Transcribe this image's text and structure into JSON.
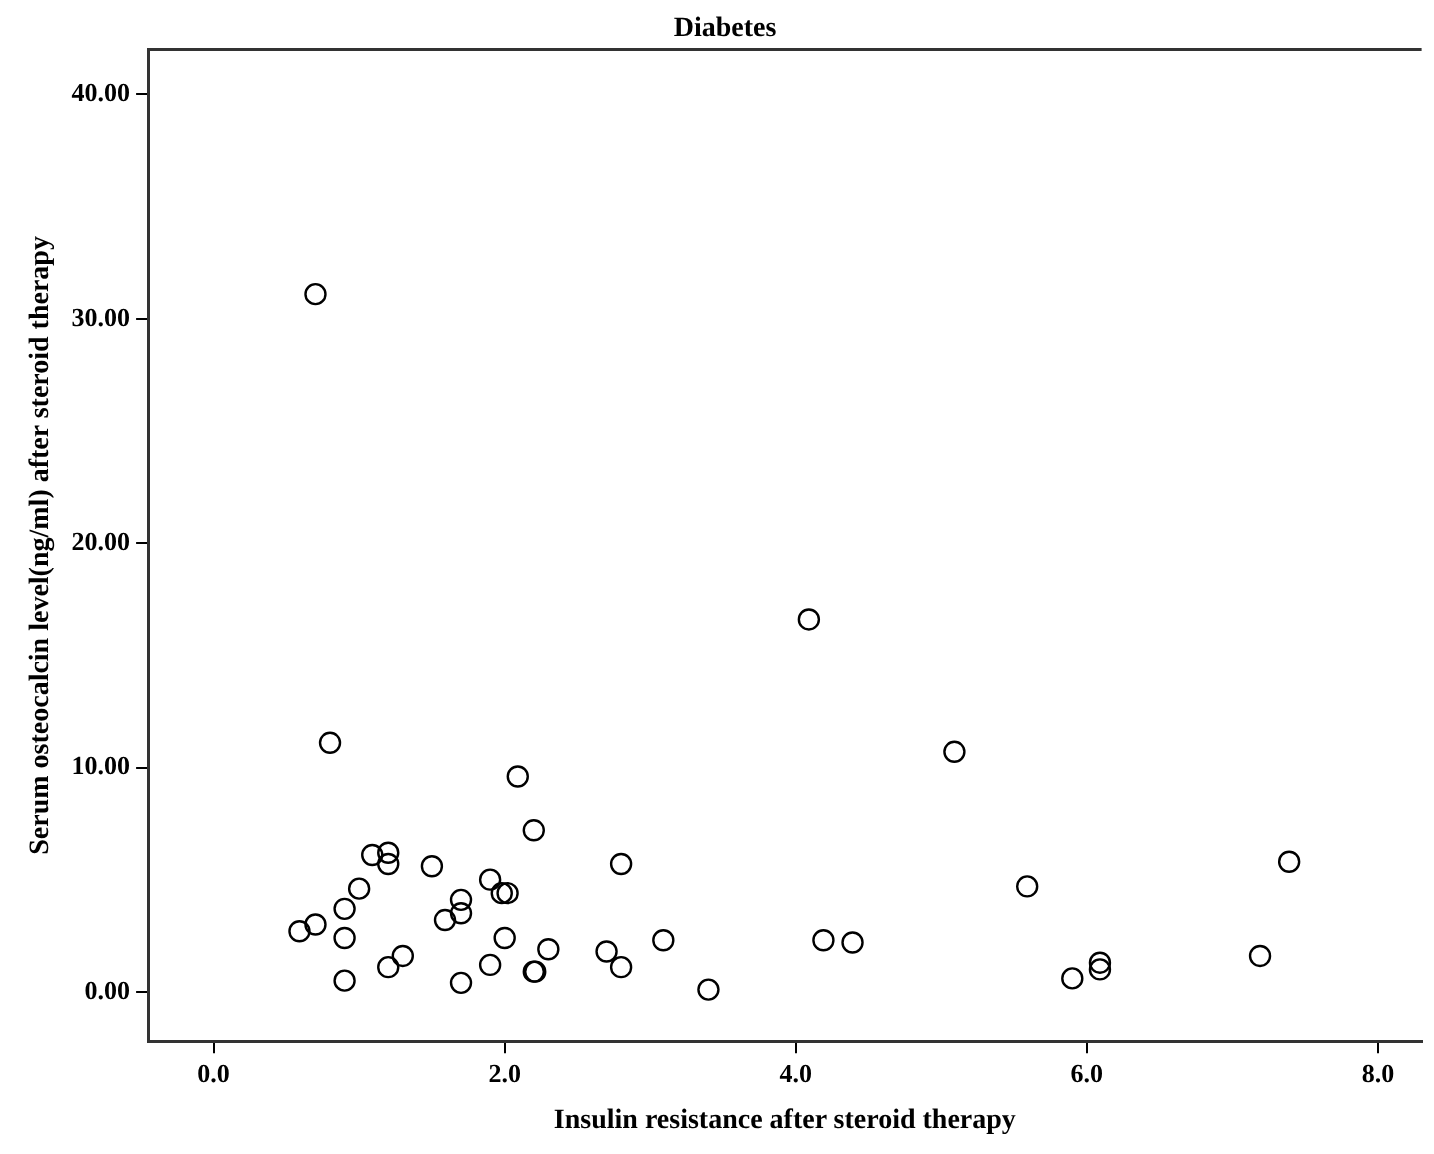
{
  "chart_data": {
    "type": "scatter",
    "title": "Diabetes",
    "xlabel": "Insulin resistance after steroid therapy",
    "ylabel": "Serum osteocalcin level(ng/ml) after steroid therapy",
    "xlim": [
      -0.45,
      8.3
    ],
    "ylim": [
      -2.2,
      42
    ],
    "xticks": [
      {
        "value": 0,
        "label": "0.0"
      },
      {
        "value": 2,
        "label": "2.0"
      },
      {
        "value": 4,
        "label": "4.0"
      },
      {
        "value": 6,
        "label": "6.0"
      },
      {
        "value": 8,
        "label": "8.0"
      }
    ],
    "yticks": [
      {
        "value": 0,
        "label": "0.00"
      },
      {
        "value": 10,
        "label": "10.00"
      },
      {
        "value": 20,
        "label": "20.00"
      },
      {
        "value": 30,
        "label": "30.00"
      },
      {
        "value": 40,
        "label": "40.00"
      }
    ],
    "grid": false,
    "legend": false,
    "marker": "circle",
    "series": [
      {
        "color": "#000000",
        "x": [
          0.7,
          4.09,
          0.8,
          5.09,
          2.09,
          2.2,
          1.09,
          1.2,
          1.2,
          1.5,
          2.8,
          7.39,
          1.9,
          1.0,
          1.98,
          2.02,
          5.59,
          1.7,
          0.9,
          1.7,
          1.59,
          0.59,
          0.7,
          0.9,
          2.0,
          3.09,
          4.19,
          4.39,
          2.3,
          2.7,
          1.3,
          7.19,
          6.09,
          6.09,
          1.9,
          1.2,
          2.8,
          2.2,
          2.21,
          0.9,
          1.7,
          5.9,
          3.4
        ],
        "values": [
          31.1,
          16.6,
          11.1,
          10.7,
          9.6,
          7.2,
          6.1,
          6.2,
          5.7,
          5.6,
          5.7,
          5.8,
          5.0,
          4.6,
          4.4,
          4.4,
          4.7,
          4.1,
          3.7,
          3.5,
          3.2,
          2.7,
          3.0,
          2.4,
          2.4,
          2.3,
          2.3,
          2.2,
          1.9,
          1.8,
          1.6,
          1.6,
          1.3,
          1.0,
          1.2,
          1.1,
          1.1,
          0.9,
          0.9,
          0.5,
          0.4,
          0.6,
          0.1
        ]
      }
    ]
  }
}
